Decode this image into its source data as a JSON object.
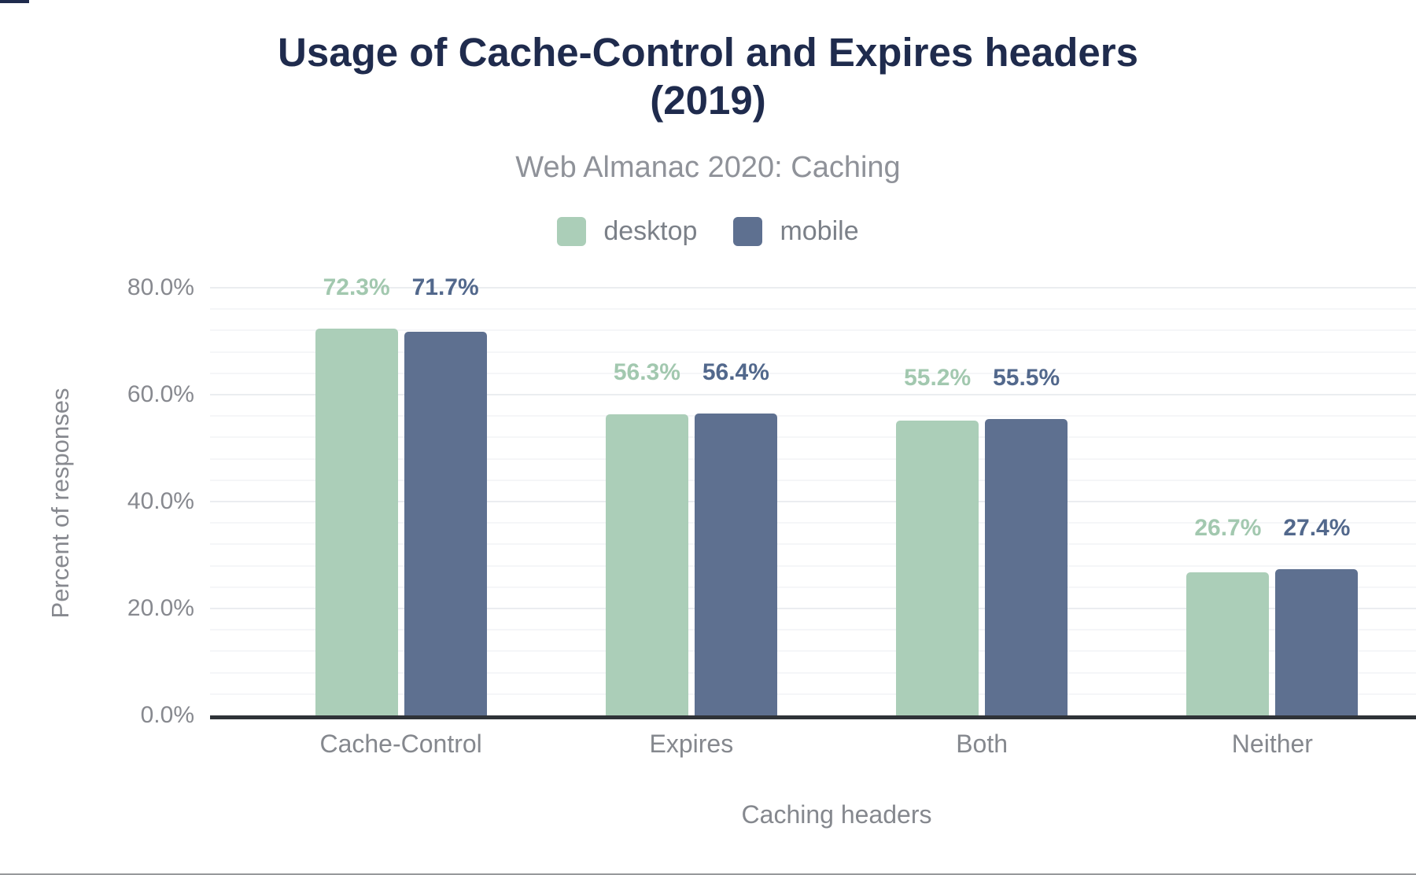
{
  "header": {
    "title": "Usage of Cache-Control and Expires headers (2019)",
    "title_lines": [
      "Usage of Cache-Control and Expires headers",
      "(2019)"
    ],
    "subtitle": "Web Almanac 2020: Caching"
  },
  "legend": {
    "items": [
      {
        "label": "desktop",
        "color": "#abceb8"
      },
      {
        "label": "mobile",
        "color": "#5e7090"
      }
    ]
  },
  "chart_data": {
    "type": "bar",
    "title": "Usage of Cache-Control and Expires headers (2019)",
    "subtitle": "Web Almanac 2020: Caching",
    "categories": [
      "Cache-Control",
      "Expires",
      "Both",
      "Neither"
    ],
    "series": [
      {
        "name": "desktop",
        "color": "#abceb8",
        "label_color": "#a2c8af",
        "values": [
          72.3,
          56.3,
          55.2,
          26.7
        ],
        "labels": [
          "72.3%",
          "56.3%",
          "55.2%",
          "26.7%"
        ]
      },
      {
        "name": "mobile",
        "color": "#5e7090",
        "label_color": "#52688c",
        "values": [
          71.7,
          56.4,
          55.5,
          27.4
        ],
        "labels": [
          "71.7%",
          "56.4%",
          "55.5%",
          "27.4%"
        ]
      }
    ],
    "xlabel": "Caching headers",
    "ylabel": "Percent of responses",
    "ylim": [
      0,
      80
    ],
    "yticks": [
      {
        "value": 0,
        "label": "0.0%"
      },
      {
        "value": 20,
        "label": "20.0%"
      },
      {
        "value": 40,
        "label": "40.0%"
      },
      {
        "value": 60,
        "label": "60.0%"
      },
      {
        "value": 80,
        "label": "80.0%"
      }
    ],
    "minor_grid_step": 4,
    "grid": true,
    "legend_position": "top",
    "colors": {
      "title_text": "#1f2b4d",
      "subtitle_text": "#8f9299",
      "axis_text": "#85888e",
      "legend_text": "#7b8088",
      "axis_line": "#2f3338",
      "major_grid": "#ebedf0",
      "minor_grid": "#f5f6f8"
    }
  }
}
